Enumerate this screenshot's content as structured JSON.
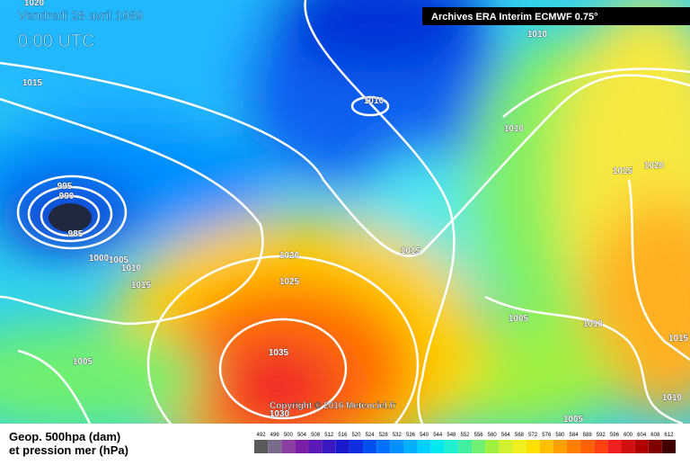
{
  "header": {
    "date": "Vendredi 28 avril 1989",
    "time": "0:00 UTC",
    "source": "Archives ERA Interim ECMWF 0.75°"
  },
  "copyright": "Copyright © 2016 Meteociel.fr",
  "isobar_labels": [
    "1020",
    "1010",
    "1015",
    "1010",
    "1010",
    "995",
    "990",
    "985",
    "1015",
    "1020",
    "1015",
    "1000",
    "1005",
    "1010",
    "1015",
    "1020",
    "1025",
    "1005",
    "1010",
    "1015",
    "1035",
    "1005",
    "1030",
    "1010",
    "1005"
  ],
  "legend": {
    "title": "Geop. 500hpa (dam)",
    "subtitle": "et pression mer (hPa)",
    "scale": [
      492,
      496,
      500,
      504,
      508,
      512,
      516,
      520,
      524,
      528,
      532,
      536,
      540,
      544,
      548,
      552,
      556,
      560,
      564,
      568,
      572,
      576,
      580,
      584,
      588,
      592,
      596,
      600,
      604,
      608,
      612
    ],
    "colors": [
      "#5a5a5a",
      "#7b6b8a",
      "#8b3fa0",
      "#7a1fa8",
      "#5b1ab5",
      "#3a1ac0",
      "#1a1acc",
      "#0f2ee0",
      "#0050f0",
      "#0070ff",
      "#0090ff",
      "#00b0ff",
      "#00d0ff",
      "#00e8f0",
      "#20f0d0",
      "#40f0a0",
      "#70f070",
      "#a0f040",
      "#d0f030",
      "#f0f020",
      "#ffe000",
      "#ffc000",
      "#ffa000",
      "#ff8000",
      "#ff6000",
      "#ff4010",
      "#f02020",
      "#d01010",
      "#b00000",
      "#800000",
      "#400000"
    ]
  }
}
